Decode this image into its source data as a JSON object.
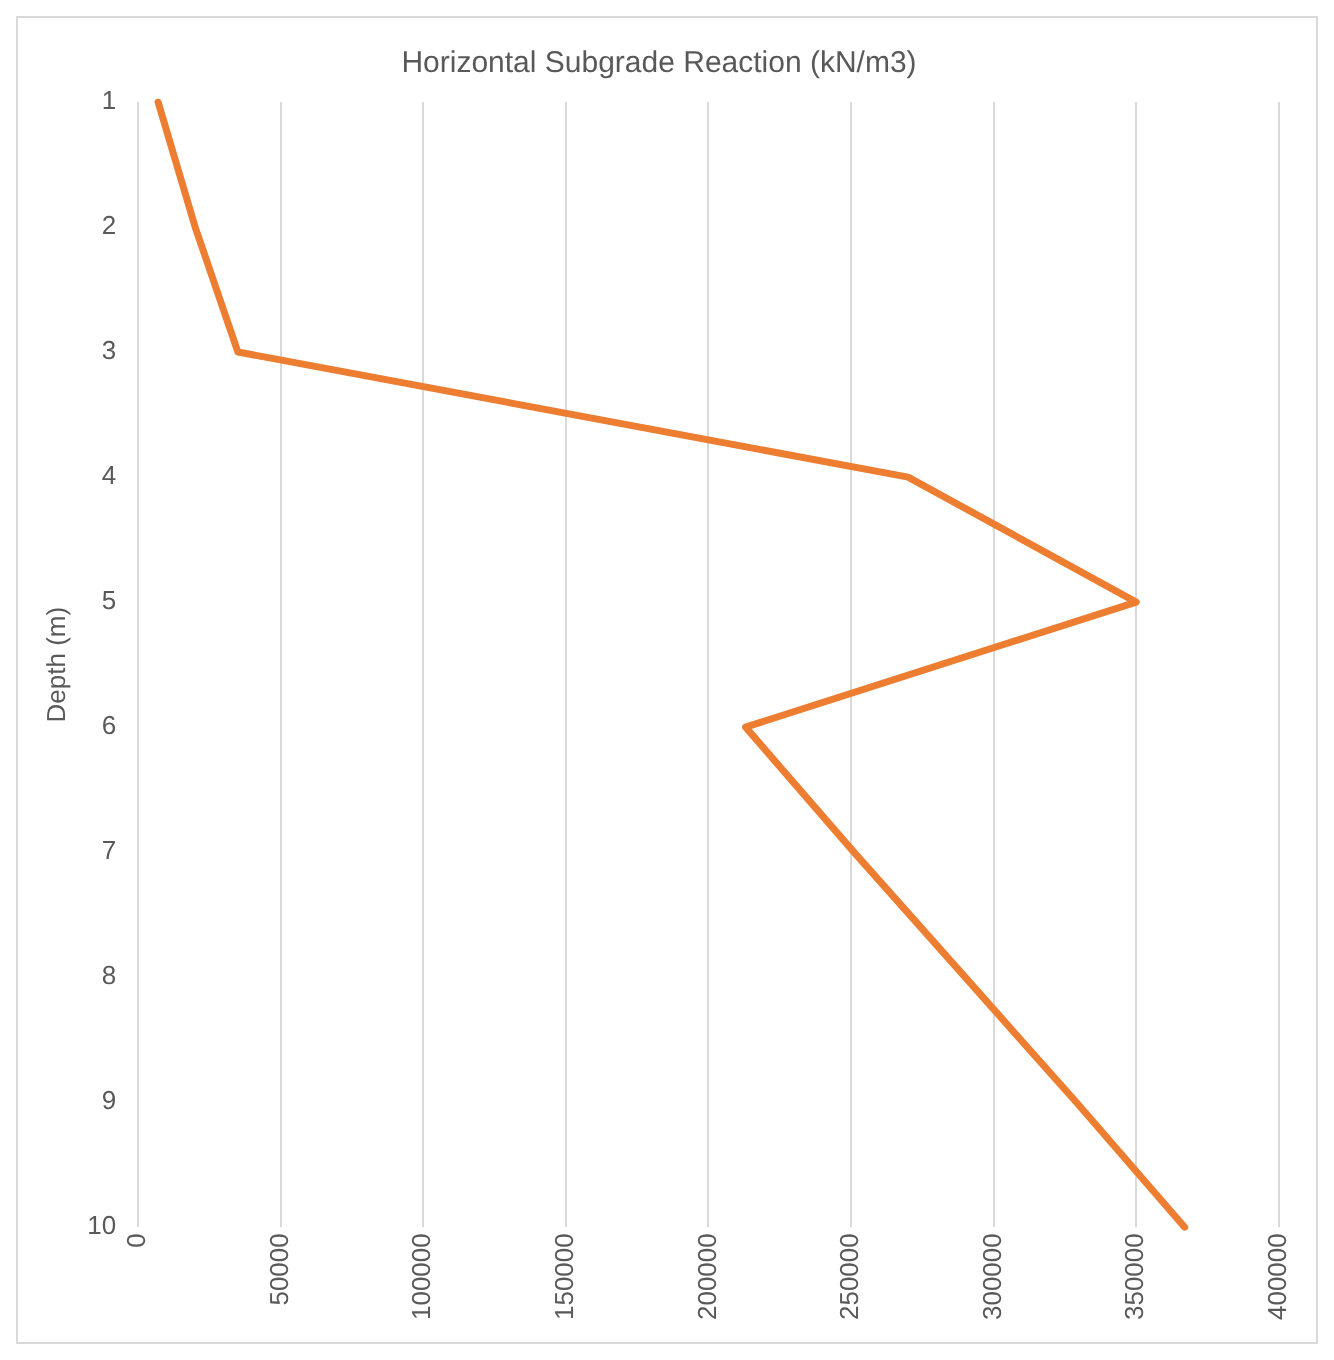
{
  "chart_data": {
    "type": "line",
    "orientation": "horizontal",
    "title": "Horizontal Subgrade Reaction (kN/m3)",
    "ylabel": "Depth (m)",
    "categories": [
      "1",
      "2",
      "3",
      "4",
      "5",
      "6",
      "7",
      "8",
      "9",
      "10"
    ],
    "series": [
      {
        "color": "#ed7d31",
        "values": [
          7000,
          20000,
          35000,
          270000,
          350000,
          213000,
          251000,
          290000,
          329000,
          367000
        ]
      }
    ],
    "xlim": [
      0,
      400000
    ],
    "xticks": [
      0,
      50000,
      100000,
      150000,
      200000,
      250000,
      300000,
      350000,
      400000
    ],
    "grid": "x",
    "legend": false,
    "marker": "none",
    "line_style": "solid"
  }
}
